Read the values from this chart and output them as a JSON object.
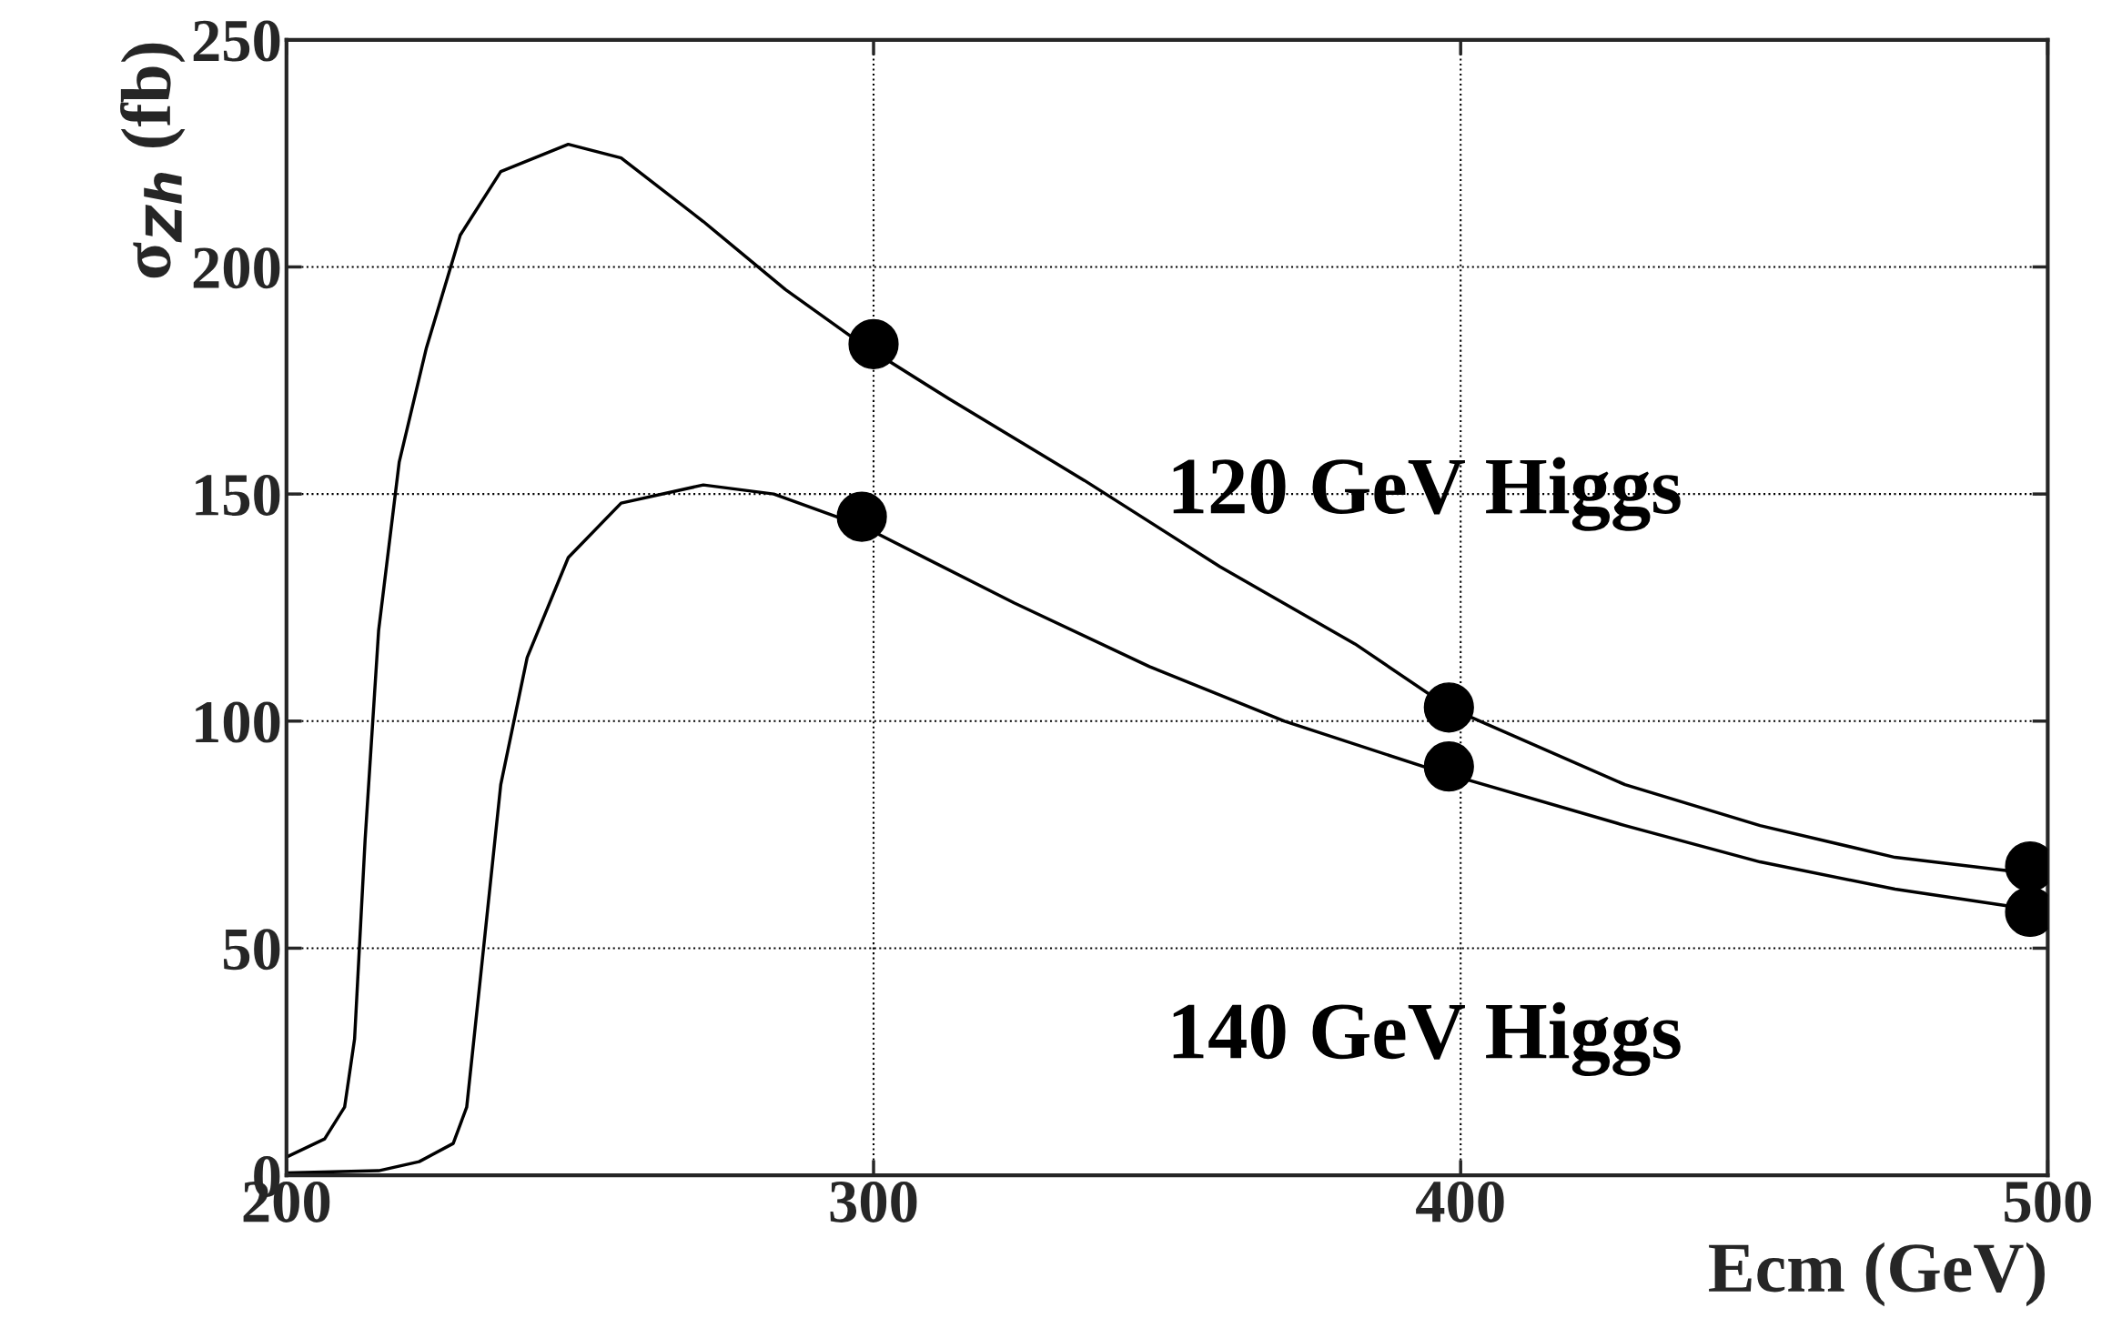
{
  "chart_data": {
    "type": "line",
    "xlabel": "Ecm (GeV)",
    "ylabel": "σ$_{Zh}$ (fb)",
    "xlim": [
      200,
      500
    ],
    "ylim": [
      0,
      250
    ],
    "xticks": [
      200,
      300,
      400,
      500
    ],
    "yticks": [
      0,
      50,
      100,
      150,
      200,
      250
    ],
    "grid": true,
    "legend": false,
    "line_style": "solid",
    "series": [
      {
        "name": "120 GeV Higgs",
        "color": "#000000",
        "marker": "none",
        "x": [
          200,
          206.5,
          209.9,
          211.6,
          213.4,
          215.7,
          219.2,
          223.8,
          229.6,
          236.5,
          248,
          257,
          271,
          285,
          298,
          312.8,
          335.9,
          359,
          382,
          398,
          428,
          451,
          474,
          500
        ],
        "values": [
          4,
          8,
          15,
          30,
          74,
          120,
          157,
          182,
          207,
          221,
          227,
          224,
          210,
          195,
          183,
          171,
          153,
          134,
          117,
          103,
          86,
          77,
          70,
          66
        ]
      },
      {
        "name": "140 GeV Higgs",
        "color": "#000000",
        "marker": "none",
        "x": [
          200,
          215.7,
          222.6,
          228.4,
          230.7,
          233,
          236.5,
          241,
          248,
          257,
          271,
          283,
          298,
          324,
          347,
          370,
          396,
          428,
          451,
          474,
          500
        ],
        "values": [
          0.5,
          1,
          3,
          7,
          15,
          43,
          86,
          114,
          136,
          148,
          152,
          150,
          143,
          126,
          112,
          100,
          89,
          77,
          69,
          63,
          58
        ]
      },
      {
        "type": "scatter",
        "color": "#000000",
        "marker": "circle",
        "x": [
          300,
          398,
          497
        ],
        "values": [
          183,
          103,
          68
        ]
      },
      {
        "type": "scatter",
        "color": "#000000",
        "marker": "circle",
        "x": [
          298,
          398,
          497
        ],
        "values": [
          145,
          90,
          58
        ]
      }
    ]
  }
}
